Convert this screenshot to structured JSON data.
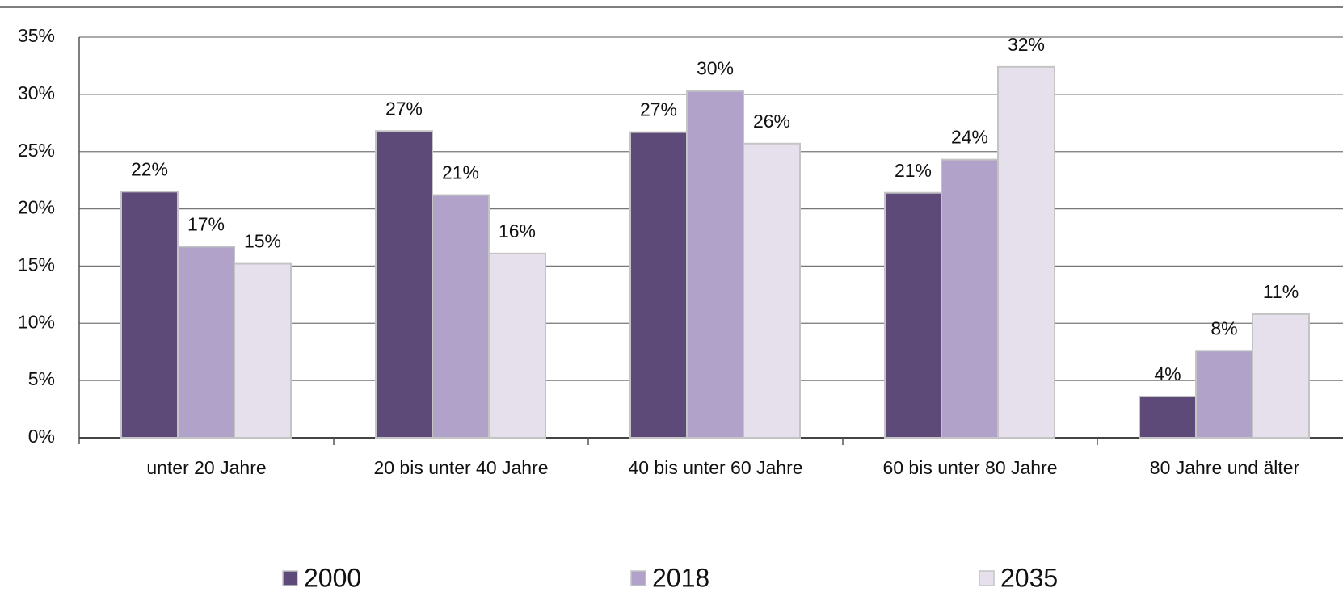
{
  "chart_data": {
    "type": "bar",
    "categories": [
      "unter 20 Jahre",
      "20 bis unter 40 Jahre",
      "40 bis unter 60 Jahre",
      "60 bis unter 80 Jahre",
      "80 Jahre und älter"
    ],
    "series": [
      {
        "name": "2000",
        "color": "#5e4a78",
        "values": [
          21.5,
          26.8,
          26.7,
          21.4,
          3.6
        ],
        "value_labels": [
          "22%",
          "27%",
          "27%",
          "21%",
          "4%"
        ]
      },
      {
        "name": "2018",
        "color": "#b0a2c8",
        "values": [
          16.7,
          21.2,
          30.3,
          24.3,
          7.6
        ],
        "value_labels": [
          "17%",
          "21%",
          "30%",
          "24%",
          "8%"
        ]
      },
      {
        "name": "2035",
        "color": "#e6e0ec",
        "values": [
          15.2,
          16.1,
          25.7,
          32.4,
          10.8
        ],
        "value_labels": [
          "15%",
          "16%",
          "26%",
          "32%",
          "11%"
        ]
      }
    ],
    "ylim": [
      0,
      35
    ],
    "yticks": [
      {
        "value": 0,
        "label": "0%"
      },
      {
        "value": 5,
        "label": "5%"
      },
      {
        "value": 10,
        "label": "10%"
      },
      {
        "value": 15,
        "label": "15%"
      },
      {
        "value": 20,
        "label": "20%"
      },
      {
        "value": 25,
        "label": "25%"
      },
      {
        "value": 30,
        "label": "30%"
      },
      {
        "value": 35,
        "label": "35%"
      }
    ],
    "grid": true,
    "legend": "bottom"
  }
}
